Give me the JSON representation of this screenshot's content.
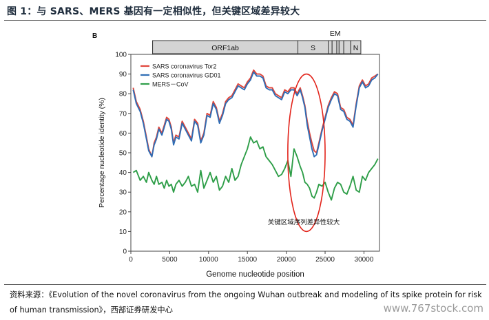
{
  "figure": {
    "title": "图 1：与 SARS、MERS 基因有一定相似性，但关键区域差异较大",
    "source": "资料来源：《Evolution of the novel coronavirus from the ongoing Wuhan outbreak and modeling of its spike protein for risk of human transmission》，西部证券研发中心",
    "watermark": "www.767stock.com"
  },
  "chart_data": {
    "type": "line",
    "panel_label": "B",
    "title": "",
    "xlabel": "Genome nucleotide position",
    "ylabel": "Percentage nucleotide identity (%)",
    "xlim": [
      0,
      32000
    ],
    "ylim": [
      0,
      100
    ],
    "xticks": [
      0,
      5000,
      10000,
      15000,
      20000,
      25000,
      30000
    ],
    "yticks": [
      0,
      10,
      20,
      30,
      40,
      50,
      60,
      70,
      80,
      90,
      100
    ],
    "grid": false,
    "legend_position": "top-left",
    "genome_bar": {
      "segments": [
        {
          "label": "",
          "start": 2800,
          "end": 21500
        },
        {
          "label": "ORF1ab",
          "start": 2800,
          "end": 21500
        },
        {
          "label": "S",
          "start": 21500,
          "end": 25400
        },
        {
          "label": "",
          "start": 25400,
          "end": 25900
        },
        {
          "label": "",
          "start": 25900,
          "end": 26500
        },
        {
          "label": "",
          "start": 26500,
          "end": 26800
        },
        {
          "label": "",
          "start": 26800,
          "end": 27400
        },
        {
          "label": "",
          "start": 27400,
          "end": 28300
        },
        {
          "label": "N",
          "start": 28300,
          "end": 29600
        }
      ],
      "em_label": "EM",
      "em_position": 26300
    },
    "annotation": {
      "text": "关键区域序列差异性较大",
      "ellipse_center": [
        22600,
        50
      ],
      "ellipse_radius": [
        2400,
        40
      ]
    },
    "series": [
      {
        "name": "SARS coronavirus Tor2",
        "color": "#e0453a",
        "x": [
          300,
          700,
          1200,
          1600,
          2000,
          2300,
          2700,
          3000,
          3300,
          3600,
          4000,
          4300,
          4600,
          4900,
          5200,
          5500,
          5800,
          6200,
          6600,
          7000,
          7400,
          7800,
          8200,
          8600,
          9000,
          9400,
          9800,
          10200,
          10600,
          11000,
          11400,
          11800,
          12200,
          12600,
          13000,
          13400,
          13800,
          14200,
          14600,
          15000,
          15400,
          15800,
          16200,
          16600,
          17000,
          17400,
          17800,
          18200,
          18600,
          19000,
          19400,
          19800,
          20200,
          20600,
          21000,
          21400,
          21800,
          22100,
          22400,
          22700,
          23000,
          23300,
          23600,
          23900,
          24200,
          24600,
          25000,
          25400,
          25800,
          26200,
          26600,
          27000,
          27400,
          27800,
          28200,
          28600,
          29000,
          29400,
          29800,
          30200,
          30600,
          31000,
          31400,
          31800
        ],
        "values": [
          83,
          76,
          72,
          66,
          58,
          52,
          48,
          55,
          58,
          63,
          60,
          64,
          68,
          67,
          63,
          55,
          59,
          58,
          66,
          63,
          60,
          57,
          67,
          65,
          56,
          60,
          70,
          69,
          76,
          73,
          66,
          70,
          76,
          78,
          79,
          82,
          85,
          84,
          83,
          86,
          88,
          92,
          90,
          90,
          89,
          84,
          83,
          83,
          80,
          79,
          78,
          82,
          81,
          83,
          83,
          80,
          83,
          79,
          74,
          66,
          60,
          55,
          51,
          50,
          55,
          62,
          68,
          74,
          78,
          81,
          80,
          73,
          72,
          68,
          67,
          64,
          75,
          84,
          87,
          84,
          85,
          88,
          89,
          90
        ]
      },
      {
        "name": "SARS coronavirus GD01",
        "color": "#2f6db5",
        "x": [
          300,
          700,
          1200,
          1600,
          2000,
          2300,
          2700,
          3000,
          3300,
          3600,
          4000,
          4300,
          4600,
          4900,
          5200,
          5500,
          5800,
          6200,
          6600,
          7000,
          7400,
          7800,
          8200,
          8600,
          9000,
          9400,
          9800,
          10200,
          10600,
          11000,
          11400,
          11800,
          12200,
          12600,
          13000,
          13400,
          13800,
          14200,
          14600,
          15000,
          15400,
          15800,
          16200,
          16600,
          17000,
          17400,
          17800,
          18200,
          18600,
          19000,
          19400,
          19800,
          20200,
          20600,
          21000,
          21400,
          21800,
          22100,
          22400,
          22700,
          23000,
          23300,
          23600,
          23900,
          24200,
          24600,
          25000,
          25400,
          25800,
          26200,
          26600,
          27000,
          27400,
          27800,
          28200,
          28600,
          29000,
          29400,
          29800,
          30200,
          30600,
          31000,
          31400,
          31800
        ],
        "values": [
          82,
          75,
          71,
          65,
          57,
          51,
          48,
          54,
          57,
          62,
          59,
          63,
          67,
          66,
          62,
          54,
          58,
          57,
          65,
          62,
          59,
          56,
          66,
          64,
          55,
          59,
          69,
          68,
          75,
          72,
          65,
          69,
          75,
          77,
          78,
          81,
          84,
          83,
          82,
          85,
          87,
          91,
          89,
          89,
          88,
          83,
          82,
          82,
          79,
          78,
          77,
          81,
          80,
          82,
          82,
          79,
          82,
          78,
          73,
          64,
          58,
          52,
          48,
          49,
          54,
          61,
          67,
          73,
          77,
          80,
          79,
          72,
          71,
          67,
          66,
          63,
          74,
          83,
          86,
          83,
          84,
          87,
          88,
          90
        ]
      },
      {
        "name": "MERS－CoV",
        "color": "#2e9e48",
        "x": [
          300,
          700,
          1200,
          1600,
          2000,
          2300,
          2700,
          3000,
          3300,
          3600,
          4000,
          4300,
          4600,
          4900,
          5200,
          5500,
          5800,
          6200,
          6600,
          7000,
          7400,
          7800,
          8200,
          8600,
          9000,
          9400,
          9800,
          10200,
          10600,
          11000,
          11400,
          11800,
          12200,
          12600,
          13000,
          13400,
          13800,
          14200,
          14600,
          15000,
          15400,
          15800,
          16200,
          16600,
          17000,
          17400,
          17800,
          18200,
          18600,
          19000,
          19400,
          19800,
          20200,
          20600,
          21000,
          21400,
          21800,
          22100,
          22400,
          22700,
          23000,
          23300,
          23600,
          23900,
          24200,
          24600,
          25000,
          25400,
          25800,
          26200,
          26600,
          27000,
          27400,
          27800,
          28200,
          28600,
          29000,
          29400,
          29800,
          30200,
          30600,
          31000,
          31400,
          31800
        ],
        "values": [
          40,
          41,
          36,
          38,
          35,
          40,
          36,
          34,
          38,
          34,
          35,
          32,
          36,
          33,
          34,
          30,
          34,
          36,
          33,
          35,
          38,
          33,
          34,
          30,
          41,
          32,
          36,
          40,
          35,
          38,
          31,
          33,
          38,
          35,
          42,
          36,
          38,
          44,
          48,
          52,
          58,
          55,
          56,
          52,
          53,
          48,
          46,
          44,
          41,
          38,
          39,
          42,
          46,
          38,
          52,
          48,
          43,
          40,
          35,
          34,
          32,
          28,
          27,
          30,
          34,
          33,
          35,
          30,
          26,
          32,
          35,
          34,
          30,
          29,
          33,
          38,
          31,
          30,
          38,
          36,
          40,
          42,
          44,
          47
        ]
      }
    ]
  }
}
